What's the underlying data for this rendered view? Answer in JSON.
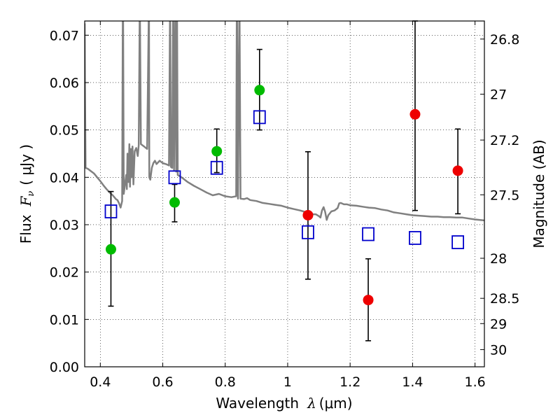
{
  "chart_data": {
    "type": "scatter",
    "xlabel_text": "Wavelength",
    "xlabel_symbol": "λ",
    "xlabel_unit": "(μm)",
    "ylabel_text": "Flux",
    "ylabel_symbol": "F",
    "ylabel_subscript": "ν",
    "ylabel_unit": "( μJy )",
    "y2label": "Magnitude (AB)",
    "xlim": [
      0.35,
      1.63
    ],
    "ylim": [
      0.0,
      0.073
    ],
    "grid": true,
    "x_ticks": [
      {
        "value": 0.4,
        "label": "0.4"
      },
      {
        "value": 0.6,
        "label": "0.6"
      },
      {
        "value": 0.8,
        "label": "0.8"
      },
      {
        "value": 1.0,
        "label": "1"
      },
      {
        "value": 1.2,
        "label": "1.2"
      },
      {
        "value": 1.4,
        "label": "1.4"
      },
      {
        "value": 1.6,
        "label": "1.6"
      }
    ],
    "y_ticks": [
      {
        "value": 0.0,
        "label": "0.00"
      },
      {
        "value": 0.01,
        "label": "0.01"
      },
      {
        "value": 0.02,
        "label": "0.02"
      },
      {
        "value": 0.03,
        "label": "0.03"
      },
      {
        "value": 0.04,
        "label": "0.04"
      },
      {
        "value": 0.05,
        "label": "0.05"
      },
      {
        "value": 0.06,
        "label": "0.06"
      },
      {
        "value": 0.07,
        "label": "0.07"
      }
    ],
    "mag_ticks": [
      {
        "mag": 26.8,
        "label": "26.8"
      },
      {
        "mag": 27.0,
        "label": "27"
      },
      {
        "mag": 27.2,
        "label": "27.2"
      },
      {
        "mag": 27.5,
        "label": "27.5"
      },
      {
        "mag": 28.0,
        "label": "28"
      },
      {
        "mag": 28.5,
        "label": "28.5"
      },
      {
        "mag": 29.0,
        "label": "29"
      },
      {
        "mag": 30.0,
        "label": "30"
      }
    ],
    "series": [
      {
        "type": "line",
        "color": "#808080",
        "points": [
          [
            0.35,
            0.0725
          ],
          [
            0.351,
            0.06
          ],
          [
            0.352,
            0.05
          ],
          [
            0.353,
            0.042
          ],
          [
            0.36,
            0.0418
          ],
          [
            0.37,
            0.0413
          ],
          [
            0.38,
            0.0408
          ],
          [
            0.39,
            0.04
          ],
          [
            0.4,
            0.0392
          ],
          [
            0.41,
            0.0383
          ],
          [
            0.42,
            0.0375
          ],
          [
            0.43,
            0.0368
          ],
          [
            0.44,
            0.0362
          ],
          [
            0.45,
            0.0354
          ],
          [
            0.455,
            0.0352
          ],
          [
            0.46,
            0.0345
          ],
          [
            0.465,
            0.0336
          ],
          [
            0.47,
            0.035
          ],
          [
            0.472,
            0.073
          ],
          [
            0.473,
            0.073
          ],
          [
            0.475,
            0.0365
          ],
          [
            0.48,
            0.039
          ],
          [
            0.483,
            0.0405
          ],
          [
            0.485,
            0.0375
          ],
          [
            0.487,
            0.045
          ],
          [
            0.49,
            0.039
          ],
          [
            0.493,
            0.047
          ],
          [
            0.495,
            0.038
          ],
          [
            0.498,
            0.046
          ],
          [
            0.5,
            0.04
          ],
          [
            0.503,
            0.0465
          ],
          [
            0.506,
            0.0385
          ],
          [
            0.51,
            0.0455
          ],
          [
            0.515,
            0.0462
          ],
          [
            0.52,
            0.0445
          ],
          [
            0.523,
            0.0468
          ],
          [
            0.526,
            0.073
          ],
          [
            0.527,
            0.073
          ],
          [
            0.53,
            0.047
          ],
          [
            0.54,
            0.0465
          ],
          [
            0.55,
            0.046
          ],
          [
            0.555,
            0.073
          ],
          [
            0.556,
            0.073
          ],
          [
            0.557,
            0.04
          ],
          [
            0.56,
            0.0395
          ],
          [
            0.565,
            0.042
          ],
          [
            0.57,
            0.043
          ],
          [
            0.575,
            0.0435
          ],
          [
            0.58,
            0.0428
          ],
          [
            0.59,
            0.0435
          ],
          [
            0.6,
            0.043
          ],
          [
            0.61,
            0.0428
          ],
          [
            0.62,
            0.0425
          ],
          [
            0.623,
            0.073
          ],
          [
            0.624,
            0.073
          ],
          [
            0.626,
            0.0422
          ],
          [
            0.63,
            0.042
          ],
          [
            0.633,
            0.073
          ],
          [
            0.634,
            0.073
          ],
          [
            0.636,
            0.0415
          ],
          [
            0.64,
            0.073
          ],
          [
            0.641,
            0.073
          ],
          [
            0.643,
            0.0412
          ],
          [
            0.645,
            0.073
          ],
          [
            0.646,
            0.073
          ],
          [
            0.648,
            0.0405
          ],
          [
            0.66,
            0.04
          ],
          [
            0.68,
            0.039
          ],
          [
            0.7,
            0.0382
          ],
          [
            0.72,
            0.0375
          ],
          [
            0.74,
            0.0368
          ],
          [
            0.76,
            0.0362
          ],
          [
            0.78,
            0.0365
          ],
          [
            0.8,
            0.036
          ],
          [
            0.82,
            0.0358
          ],
          [
            0.835,
            0.036
          ],
          [
            0.837,
            0.073
          ],
          [
            0.838,
            0.073
          ],
          [
            0.841,
            0.0355
          ],
          [
            0.845,
            0.073
          ],
          [
            0.846,
            0.073
          ],
          [
            0.849,
            0.0355
          ],
          [
            0.86,
            0.0354
          ],
          [
            0.87,
            0.0356
          ],
          [
            0.88,
            0.0352
          ],
          [
            0.9,
            0.035
          ],
          [
            0.92,
            0.0346
          ],
          [
            0.94,
            0.0344
          ],
          [
            0.96,
            0.0342
          ],
          [
            0.98,
            0.034
          ],
          [
            1.0,
            0.0336
          ],
          [
            1.02,
            0.0333
          ],
          [
            1.04,
            0.033
          ],
          [
            1.05,
            0.0328
          ],
          [
            1.06,
            0.0326
          ],
          [
            1.07,
            0.0324
          ],
          [
            1.08,
            0.0322
          ],
          [
            1.09,
            0.0322
          ],
          [
            1.1,
            0.0318
          ],
          [
            1.105,
            0.0315
          ],
          [
            1.11,
            0.033
          ],
          [
            1.115,
            0.0337
          ],
          [
            1.12,
            0.0327
          ],
          [
            1.125,
            0.031
          ],
          [
            1.13,
            0.032
          ],
          [
            1.14,
            0.0328
          ],
          [
            1.15,
            0.033
          ],
          [
            1.16,
            0.0335
          ],
          [
            1.165,
            0.0345
          ],
          [
            1.17,
            0.0346
          ],
          [
            1.18,
            0.0343
          ],
          [
            1.19,
            0.0343
          ],
          [
            1.2,
            0.0341
          ],
          [
            1.22,
            0.034
          ],
          [
            1.24,
            0.0338
          ],
          [
            1.26,
            0.0336
          ],
          [
            1.28,
            0.0335
          ],
          [
            1.3,
            0.0332
          ],
          [
            1.32,
            0.033
          ],
          [
            1.34,
            0.0326
          ],
          [
            1.36,
            0.0324
          ],
          [
            1.38,
            0.0322
          ],
          [
            1.4,
            0.032
          ],
          [
            1.42,
            0.0319
          ],
          [
            1.44,
            0.0318
          ],
          [
            1.46,
            0.0317
          ],
          [
            1.48,
            0.0317
          ],
          [
            1.5,
            0.0316
          ],
          [
            1.52,
            0.0316
          ],
          [
            1.54,
            0.0315
          ],
          [
            1.56,
            0.0315
          ],
          [
            1.58,
            0.0313
          ],
          [
            1.6,
            0.0311
          ],
          [
            1.63,
            0.0309
          ]
        ]
      },
      {
        "type": "errorbar",
        "color": "#000000",
        "points": [
          {
            "x": 0.434,
            "lo": 0.0128,
            "hi": 0.037
          },
          {
            "x": 0.638,
            "lo": 0.0306,
            "hi": 0.0385
          },
          {
            "x": 0.773,
            "lo": 0.041,
            "hi": 0.0502
          },
          {
            "x": 0.91,
            "lo": 0.05,
            "hi": 0.067
          },
          {
            "x": 1.065,
            "lo": 0.0185,
            "hi": 0.0454
          },
          {
            "x": 1.258,
            "lo": 0.0055,
            "hi": 0.0228
          },
          {
            "x": 1.408,
            "lo": 0.033,
            "hi": 0.073
          },
          {
            "x": 1.545,
            "lo": 0.0323,
            "hi": 0.0502
          }
        ]
      },
      {
        "type": "scatter",
        "marker": "square-open",
        "color": "#0000cc",
        "points": [
          [
            0.434,
            0.0328
          ],
          [
            0.638,
            0.04
          ],
          [
            0.773,
            0.042
          ],
          [
            0.91,
            0.0527
          ],
          [
            1.065,
            0.0284
          ],
          [
            1.258,
            0.028
          ],
          [
            1.408,
            0.0272
          ],
          [
            1.545,
            0.0263
          ]
        ]
      },
      {
        "type": "scatter",
        "marker": "circle",
        "color": "#00bb00",
        "points": [
          [
            0.434,
            0.0248
          ],
          [
            0.638,
            0.0347
          ],
          [
            0.773,
            0.0455
          ],
          [
            0.91,
            0.0584
          ]
        ]
      },
      {
        "type": "scatter",
        "marker": "circle",
        "color": "#ee0000",
        "points": [
          [
            1.065,
            0.032
          ],
          [
            1.258,
            0.0141
          ],
          [
            1.408,
            0.0533
          ],
          [
            1.545,
            0.0414
          ]
        ]
      }
    ]
  }
}
